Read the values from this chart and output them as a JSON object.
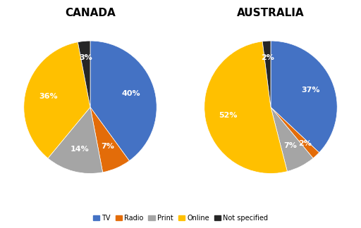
{
  "canada": {
    "title": "CANADA",
    "values": [
      40,
      7,
      14,
      36,
      3
    ],
    "labels": [
      "40%",
      "7%",
      "14%",
      "36%",
      "3%"
    ],
    "colors": [
      "#4472C4",
      "#E36C09",
      "#A5A5A5",
      "#FFC000",
      "#262626"
    ],
    "startangle": 90
  },
  "australia": {
    "title": "AUSTRALIA",
    "values": [
      37,
      2,
      7,
      52,
      2
    ],
    "labels": [
      "37%",
      "2%",
      "7%",
      "52%",
      "2%"
    ],
    "colors": [
      "#4472C4",
      "#E36C09",
      "#A5A5A5",
      "#FFC000",
      "#262626"
    ],
    "startangle": 90
  },
  "legend_labels": [
    "TV",
    "Radio",
    "Print",
    "Online",
    "Not specified"
  ],
  "legend_colors": [
    "#4472C4",
    "#E36C09",
    "#A5A5A5",
    "#FFC000",
    "#262626"
  ],
  "bg_color": "#FFFFFF",
  "text_color": "#FFFFFF",
  "title_fontsize": 11,
  "label_fontsize": 8
}
